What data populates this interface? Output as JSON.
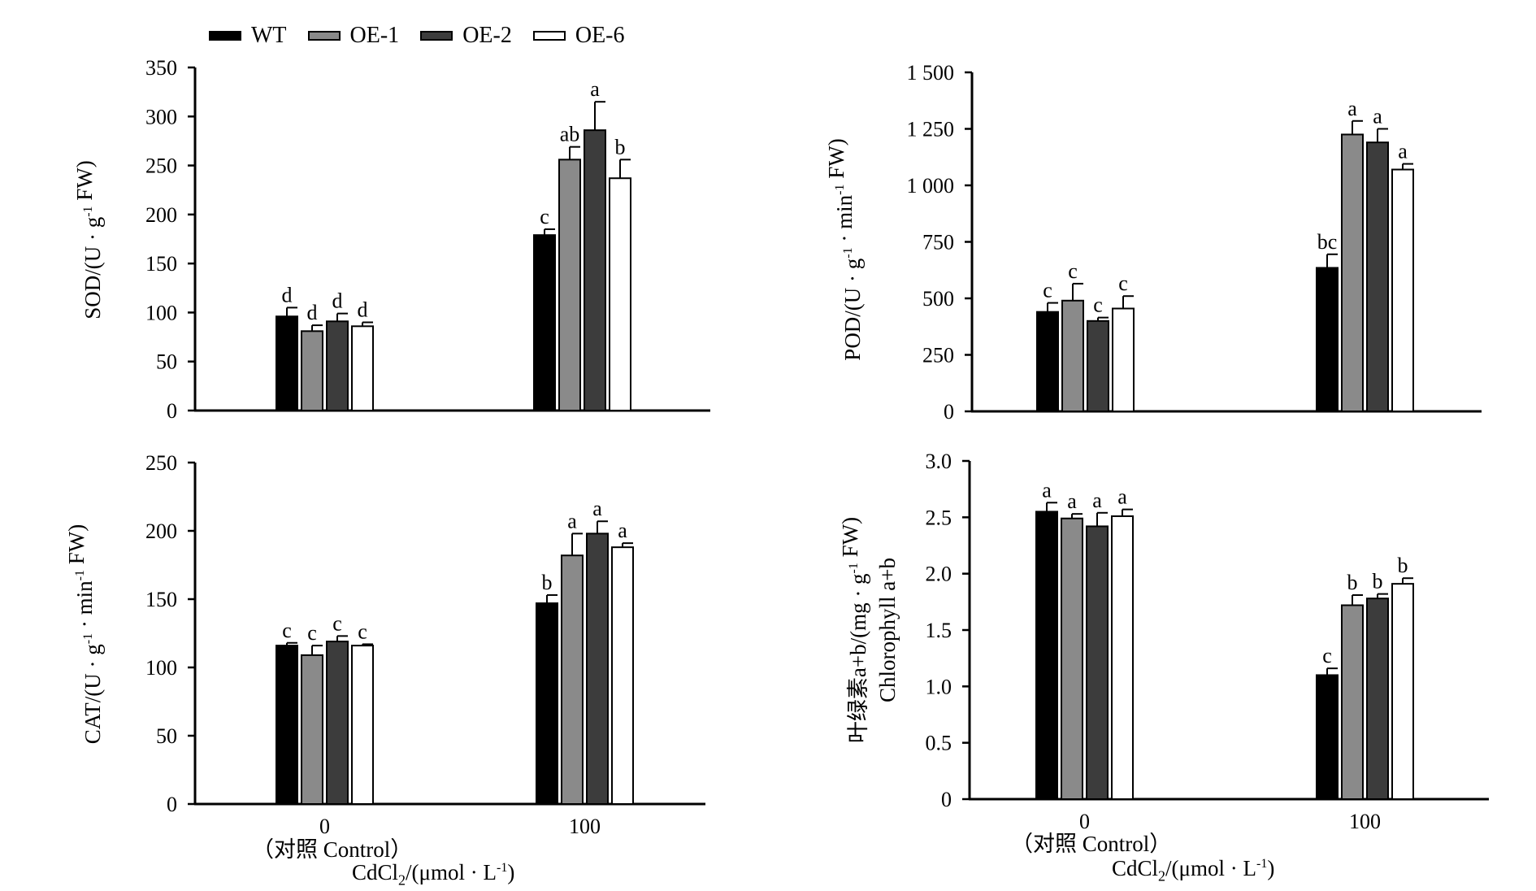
{
  "colors": {
    "WT": "#000000",
    "OE-1": "#8a8a8a",
    "OE-2": "#3c3c3c",
    "OE-6": "#ffffff"
  },
  "legend": [
    {
      "name": "WT",
      "color": "#000000"
    },
    {
      "name": "OE-1",
      "color": "#8a8a8a"
    },
    {
      "name": "OE-2",
      "color": "#3c3c3c"
    },
    {
      "name": "OE-6",
      "color": "#ffffff"
    }
  ],
  "x_caption": {
    "control_label": "（对照 Control）",
    "axis_title_main": "CdCl",
    "axis_title_sub": "2",
    "axis_title_rest": "/(μmol · L",
    "axis_title_sup": "-1",
    "axis_title_end": ")"
  },
  "chart_data": [
    {
      "type": "bar",
      "panel": "SOD",
      "ylabel": {
        "main": "SOD/(U · g",
        "sup": "-1",
        "rest": " FW)"
      },
      "categories": [
        "0",
        "100"
      ],
      "ylim": [
        0,
        350
      ],
      "yticks": [
        "0",
        "50",
        "100",
        "150",
        "200",
        "250",
        "300",
        "350"
      ],
      "series": [
        {
          "name": "WT",
          "values": [
            96,
            179
          ],
          "errors": [
            9,
            6
          ],
          "letters": [
            "d",
            "c"
          ]
        },
        {
          "name": "OE-1",
          "values": [
            81,
            256
          ],
          "errors": [
            6,
            13
          ],
          "letters": [
            "d",
            "ab"
          ]
        },
        {
          "name": "OE-2",
          "values": [
            91,
            286
          ],
          "errors": [
            8,
            29
          ],
          "letters": [
            "d",
            "a"
          ]
        },
        {
          "name": "OE-6",
          "values": [
            86,
            237
          ],
          "errors": [
            4,
            19
          ],
          "letters": [
            "d",
            "b"
          ]
        }
      ]
    },
    {
      "type": "bar",
      "panel": "POD",
      "ylabel": {
        "main": "POD/(U · g",
        "sup": "-1",
        "rest": " · min",
        "sup2": "-1",
        "rest2": " FW)"
      },
      "categories": [
        "0",
        "100"
      ],
      "ylim": [
        0,
        1500
      ],
      "yticks": [
        "0",
        "250",
        "500",
        "750",
        "1 000",
        "1 250",
        "1 500"
      ],
      "series": [
        {
          "name": "WT",
          "values": [
            440,
            635
          ],
          "errors": [
            40,
            60
          ],
          "letters": [
            "c",
            "bc"
          ]
        },
        {
          "name": "OE-1",
          "values": [
            490,
            1225
          ],
          "errors": [
            75,
            60
          ],
          "letters": [
            "c",
            "a"
          ]
        },
        {
          "name": "OE-2",
          "values": [
            400,
            1190
          ],
          "errors": [
            15,
            60
          ],
          "letters": [
            "c",
            "a"
          ]
        },
        {
          "name": "OE-6",
          "values": [
            455,
            1070
          ],
          "errors": [
            55,
            25
          ],
          "letters": [
            "c",
            "a"
          ]
        }
      ]
    },
    {
      "type": "bar",
      "panel": "CAT",
      "ylabel": {
        "main": "CAT/(U · g",
        "sup": "-1",
        "rest": " · min",
        "sup2": "-1",
        "rest2": " FW)"
      },
      "categories": [
        "0",
        "100"
      ],
      "ylim": [
        0,
        250
      ],
      "yticks": [
        "0",
        "50",
        "100",
        "150",
        "200",
        "250"
      ],
      "series": [
        {
          "name": "WT",
          "values": [
            116,
            147
          ],
          "errors": [
            2,
            6
          ],
          "letters": [
            "c",
            "b"
          ]
        },
        {
          "name": "OE-1",
          "values": [
            109,
            182
          ],
          "errors": [
            7,
            16
          ],
          "letters": [
            "c",
            "a"
          ]
        },
        {
          "name": "OE-2",
          "values": [
            119,
            198
          ],
          "errors": [
            4,
            9
          ],
          "letters": [
            "c",
            "a"
          ]
        },
        {
          "name": "OE-6",
          "values": [
            116,
            188
          ],
          "errors": [
            1,
            3
          ],
          "letters": [
            "c",
            "a"
          ]
        }
      ]
    },
    {
      "type": "bar",
      "panel": "Chlorophyll",
      "ylabel": {
        "main": "叶绿素a+b/(mg · g",
        "sup": "-1",
        "rest": " FW)",
        "line2": "Chlorophyll a+b"
      },
      "categories": [
        "0",
        "100"
      ],
      "ylim": [
        0,
        3.0
      ],
      "yticks": [
        "0",
        "0.5",
        "1.0",
        "1.5",
        "2.0",
        "2.5",
        "3.0"
      ],
      "series": [
        {
          "name": "WT",
          "values": [
            2.55,
            1.1
          ],
          "errors": [
            0.08,
            0.06
          ],
          "letters": [
            "a",
            "c"
          ]
        },
        {
          "name": "OE-1",
          "values": [
            2.49,
            1.72
          ],
          "errors": [
            0.04,
            0.09
          ],
          "letters": [
            "a",
            "b"
          ]
        },
        {
          "name": "OE-2",
          "values": [
            2.42,
            1.78
          ],
          "errors": [
            0.12,
            0.04
          ],
          "letters": [
            "a",
            "b"
          ]
        },
        {
          "name": "OE-6",
          "values": [
            2.51,
            1.91
          ],
          "errors": [
            0.06,
            0.05
          ],
          "letters": [
            "a",
            "b"
          ]
        }
      ]
    }
  ]
}
